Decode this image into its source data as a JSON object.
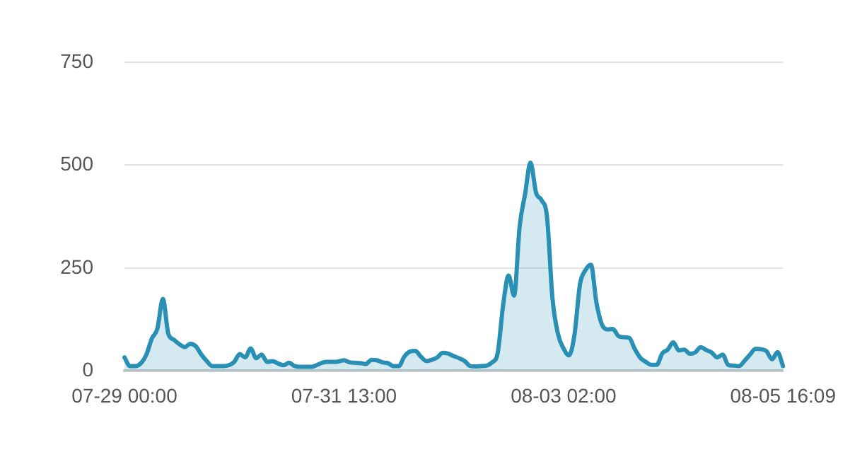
{
  "chart_data": {
    "type": "area",
    "categories": [
      "07-29 00:00",
      null,
      null,
      null,
      null,
      null,
      null,
      null,
      null,
      null,
      null,
      null,
      null,
      null,
      null,
      null,
      null,
      null,
      null,
      null,
      null,
      null,
      null,
      null,
      null,
      null,
      null,
      null,
      null,
      null,
      null,
      null,
      null,
      null,
      null,
      null,
      null,
      null,
      null,
      null,
      "07-31 13:00",
      null,
      null,
      null,
      null,
      null,
      null,
      null,
      null,
      null,
      null,
      null,
      null,
      null,
      null,
      null,
      null,
      null,
      null,
      null,
      null,
      null,
      null,
      null,
      null,
      null,
      null,
      null,
      null,
      null,
      null,
      null,
      null,
      null,
      null,
      null,
      null,
      null,
      null,
      null,
      "08-03 02:00",
      null,
      null,
      null,
      null,
      null,
      null,
      null,
      null,
      null,
      null,
      null,
      null,
      null,
      null,
      null,
      null,
      null,
      null,
      null,
      null,
      null,
      null,
      null,
      null,
      null,
      null,
      null,
      null,
      null,
      null,
      null,
      null,
      null,
      null,
      null,
      null,
      null,
      null,
      null,
      "08-05 16:09"
    ],
    "series": [
      {
        "color": "#2a8fb5",
        "values": [
          33,
          12,
          12,
          19,
          40,
          79,
          103,
          175,
          90,
          76,
          65,
          58,
          66,
          60,
          40,
          24,
          12,
          12,
          12,
          14,
          22,
          41,
          33,
          55,
          31,
          40,
          22,
          24,
          18,
          14,
          20,
          12,
          10,
          10,
          10,
          14,
          20,
          22,
          22,
          23,
          26,
          21,
          20,
          19,
          17,
          27,
          26,
          21,
          19,
          12,
          12,
          35,
          47,
          49,
          35,
          24,
          27,
          33,
          44,
          42,
          36,
          31,
          24,
          12,
          11,
          12,
          13,
          21,
          43,
          160,
          232,
          183,
          350,
          430,
          506,
          433,
          415,
          374,
          175,
          90,
          55,
          38,
          88,
          210,
          245,
          258,
          166,
          113,
          101,
          102,
          85,
          82,
          80,
          53,
          32,
          22,
          15,
          15,
          43,
          52,
          70,
          50,
          52,
          42,
          45,
          58,
          51,
          45,
          33,
          40,
          15,
          13,
          12,
          25,
          40,
          54,
          53,
          48,
          28,
          46,
          12
        ]
      }
    ],
    "ylim": [
      0,
      750
    ],
    "yticks": [
      0,
      250,
      500,
      750
    ],
    "grid": "y",
    "marker": "none"
  }
}
